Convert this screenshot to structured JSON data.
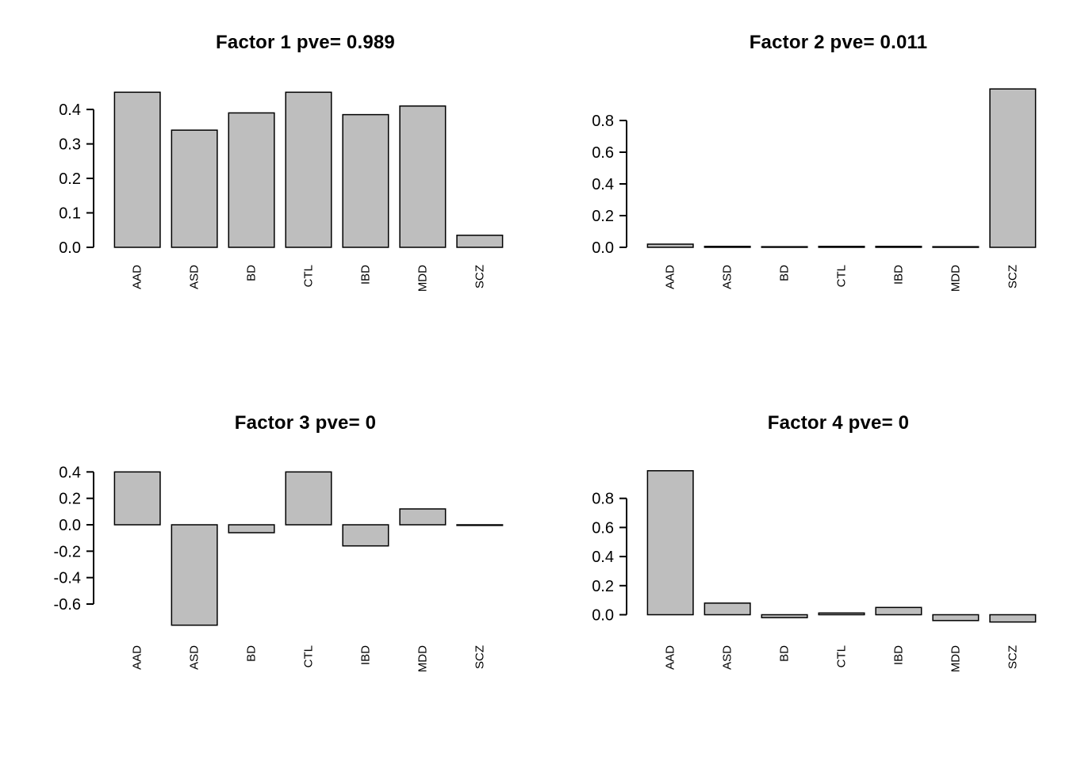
{
  "page": {
    "background_color": "#ffffff",
    "description": "2x2 grid of base-R style barplots of factor loadings"
  },
  "chart_data": [
    {
      "type": "bar",
      "title": "Factor 1 pve= 0.989",
      "categories": [
        "AAD",
        "ASD",
        "BD",
        "CTL",
        "IBD",
        "MDD",
        "SCZ"
      ],
      "values": [
        0.45,
        0.34,
        0.39,
        0.45,
        0.385,
        0.41,
        0.035
      ],
      "tick_values": [
        0.4,
        0.3,
        0.2,
        0.1,
        0.0
      ],
      "tick_labels": [
        "0.4",
        "0.3",
        "0.2",
        "0.1",
        "0.0"
      ],
      "ylim": [
        0,
        0.46
      ],
      "xlabel": "",
      "ylabel": "",
      "grid": false,
      "legend": false,
      "bar_color": "#bebebe",
      "bar_border_color": "#000000"
    },
    {
      "type": "bar",
      "title": "Factor 2 pve= 0.011",
      "categories": [
        "AAD",
        "ASD",
        "BD",
        "CTL",
        "IBD",
        "MDD",
        "SCZ"
      ],
      "values": [
        0.02,
        0.006,
        0.004,
        0.006,
        0.006,
        0.004,
        0.999
      ],
      "tick_values": [
        0.8,
        0.6,
        0.4,
        0.2,
        0.0
      ],
      "tick_labels": [
        "0.8",
        "0.6",
        "0.4",
        "0.2",
        "0.0"
      ],
      "ylim": [
        0,
        1.0
      ],
      "xlabel": "",
      "ylabel": "",
      "grid": false,
      "legend": false,
      "bar_color": "#bebebe",
      "bar_border_color": "#000000"
    },
    {
      "type": "bar",
      "title": "Factor 3 pve= 0",
      "categories": [
        "AAD",
        "ASD",
        "BD",
        "CTL",
        "IBD",
        "MDD",
        "SCZ"
      ],
      "values": [
        0.4,
        -0.76,
        -0.06,
        0.4,
        -0.16,
        0.12,
        -0.005
      ],
      "tick_values": [
        0.4,
        0.2,
        0.0,
        -0.2,
        -0.4,
        -0.6
      ],
      "tick_labels": [
        "0.4",
        "0.2",
        "0.0",
        "-0.2",
        "-0.4",
        "-0.6"
      ],
      "ylim": [
        -0.78,
        0.42
      ],
      "xlabel": "",
      "ylabel": "",
      "grid": false,
      "legend": false,
      "bar_color": "#bebebe",
      "bar_border_color": "#000000"
    },
    {
      "type": "bar",
      "title": "Factor 4 pve= 0",
      "categories": [
        "AAD",
        "ASD",
        "BD",
        "CTL",
        "IBD",
        "MDD",
        "SCZ"
      ],
      "values": [
        0.99,
        0.08,
        -0.02,
        0.012,
        0.05,
        -0.04,
        -0.05
      ],
      "tick_values": [
        0.8,
        0.6,
        0.4,
        0.2,
        0.0
      ],
      "tick_labels": [
        "0.8",
        "0.6",
        "0.4",
        "0.2",
        "0.0"
      ],
      "ylim": [
        -0.09,
        1.0
      ],
      "xlabel": "",
      "ylabel": "",
      "grid": false,
      "legend": false,
      "bar_color": "#bebebe",
      "bar_border_color": "#000000"
    }
  ]
}
